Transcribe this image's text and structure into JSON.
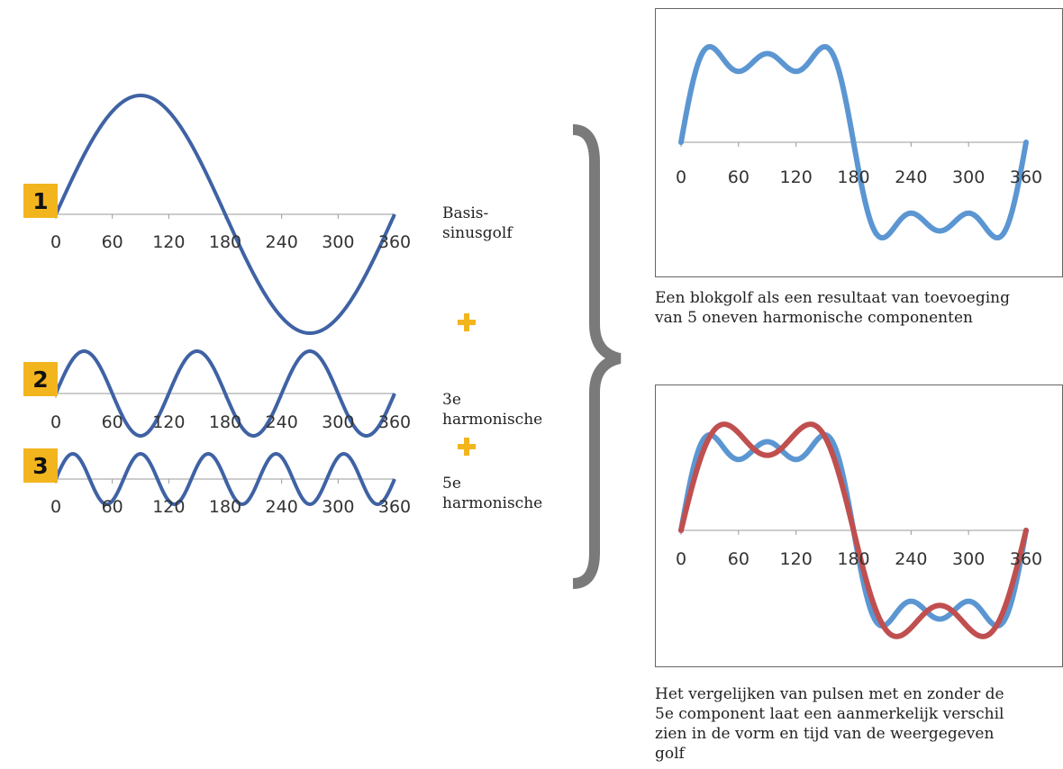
{
  "waves": [
    {
      "badge": "1",
      "label_lines": [
        "Basis-",
        "sinusgolf"
      ],
      "harmonic": 1,
      "ticks": [
        "0",
        "60",
        "120",
        "180",
        "240",
        "300",
        "360"
      ]
    },
    {
      "badge": "2",
      "label_lines": [
        "3e",
        "harmonische"
      ],
      "harmonic": 3,
      "ticks": [
        "0",
        "60",
        "120",
        "180",
        "240",
        "300",
        "360"
      ]
    },
    {
      "badge": "3",
      "label_lines": [
        "5e",
        "harmonische"
      ],
      "harmonic": 5,
      "ticks": [
        "0",
        "60",
        "120",
        "180",
        "240",
        "300",
        "360"
      ]
    }
  ],
  "result_top": {
    "ticks": [
      "0",
      "60",
      "120",
      "180",
      "240",
      "300",
      "360"
    ],
    "caption_lines": [
      "Een blokgolf als een resultaat van toevoeging",
      "van 5 oneven harmonische componenten"
    ]
  },
  "result_bottom": {
    "ticks": [
      "0",
      "60",
      "120",
      "180",
      "240",
      "300",
      "360"
    ],
    "caption_lines": [
      "Het vergelijken van pulsen met en zonder de",
      "5e component laat een aanmerkelijk verschil",
      "zien in de vorm en tijd van de weergegeven",
      "golf"
    ]
  },
  "colors": {
    "sine": "#3f62a4",
    "square_blue": "#5b96d2",
    "square_red": "#c04f4f",
    "badge": "#f2b51e",
    "bracket": "#7a7a7a"
  }
}
